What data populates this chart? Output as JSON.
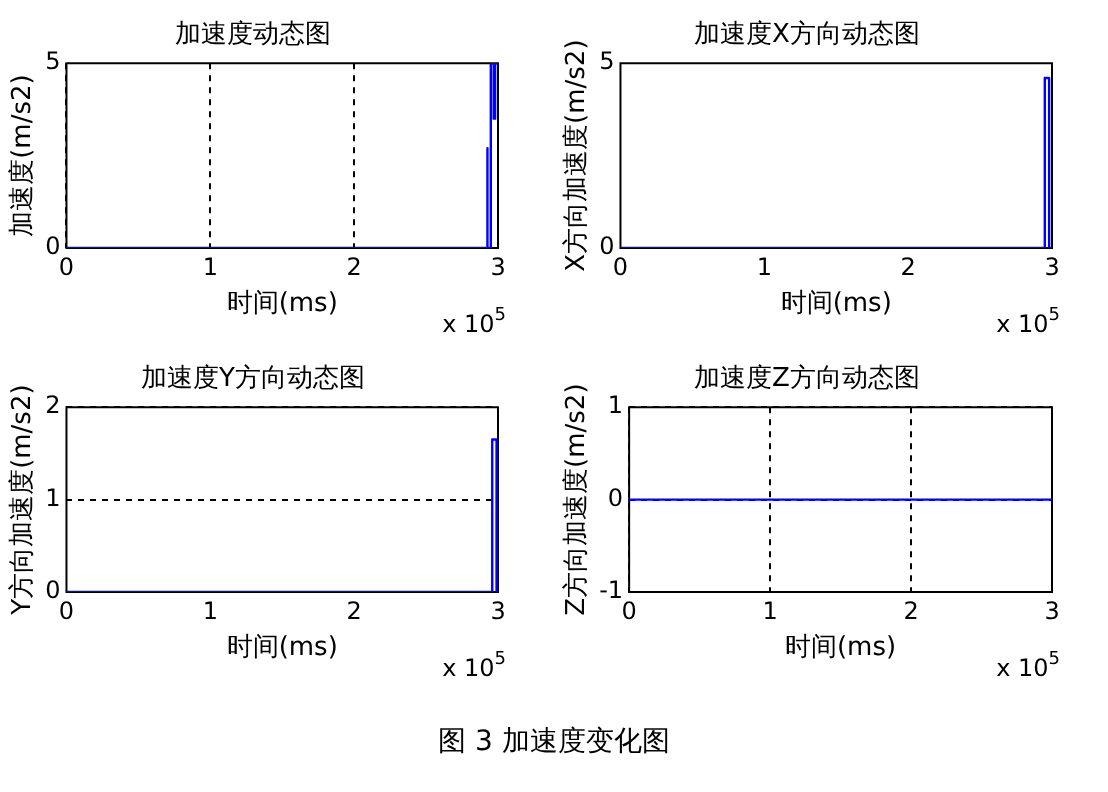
{
  "chart_data": [
    {
      "type": "line",
      "title": "加速度动态图",
      "xlabel": "时间(ms)",
      "ylabel": "加速度(m/s2)",
      "xlim": [
        0,
        3
      ],
      "xticks": [
        0,
        1,
        2,
        3
      ],
      "ylim": [
        0,
        5
      ],
      "yticks": [
        0,
        5
      ],
      "grid": "x",
      "annotations": [
        "x 10$^{5}$"
      ],
      "series": [
        {
          "color": "#0000ff",
          "x": [
            0,
            2.92,
            2.92,
            2.93,
            2.93,
            2.95,
            2.95,
            2.97,
            2.97,
            2.98,
            2.98,
            3
          ],
          "values": [
            0,
            0,
            2.7,
            2.7,
            0,
            0,
            5,
            5,
            3.5,
            3.5,
            5,
            5
          ]
        }
      ]
    },
    {
      "type": "line",
      "title": "加速度X方向动态图",
      "xlabel": "时间(ms)",
      "ylabel": "X方向加速度(m/s2)",
      "xlim": [
        0,
        3
      ],
      "xticks": [
        0,
        1,
        2,
        3
      ],
      "ylim": [
        0,
        5
      ],
      "yticks": [
        0,
        5
      ],
      "grid": false,
      "annotations": [
        "x 10$^{5}$"
      ],
      "series": [
        {
          "color": "#0000ff",
          "x": [
            0,
            2.95,
            2.95,
            2.98,
            2.98,
            3
          ],
          "values": [
            0,
            0,
            4.6,
            4.6,
            0,
            0
          ]
        }
      ]
    },
    {
      "type": "line",
      "title": "加速度Y方向动态图",
      "xlabel": "时间(ms)",
      "ylabel": "Y方向加速度(m/s2)",
      "xlim": [
        0,
        3
      ],
      "xticks": [
        0,
        1,
        2,
        3
      ],
      "ylim": [
        0,
        2
      ],
      "yticks": [
        0,
        1,
        2
      ],
      "grid": "y",
      "annotations": [
        "x 10$^{5}$"
      ],
      "series": [
        {
          "color": "#0000ff",
          "x": [
            0,
            2.96,
            2.96,
            2.99,
            2.99,
            3
          ],
          "values": [
            0,
            0,
            1.65,
            1.65,
            0,
            0
          ]
        }
      ]
    },
    {
      "type": "line",
      "title": "加速度Z方向动态图",
      "xlabel": "时间(ms)",
      "ylabel": "Z方向加速度(m/s2)",
      "xlim": [
        0,
        3
      ],
      "xticks": [
        0,
        1,
        2,
        3
      ],
      "ylim": [
        -1,
        1
      ],
      "yticks": [
        -1,
        0,
        1
      ],
      "grid": true,
      "annotations": [
        "x 10$^{5}$"
      ],
      "series": [
        {
          "color": "#0000ff",
          "x": [
            0,
            3
          ],
          "values": [
            0,
            0
          ]
        }
      ]
    },
    {
      "type": "other",
      "title": "图 3 加速度变化图"
    }
  ]
}
